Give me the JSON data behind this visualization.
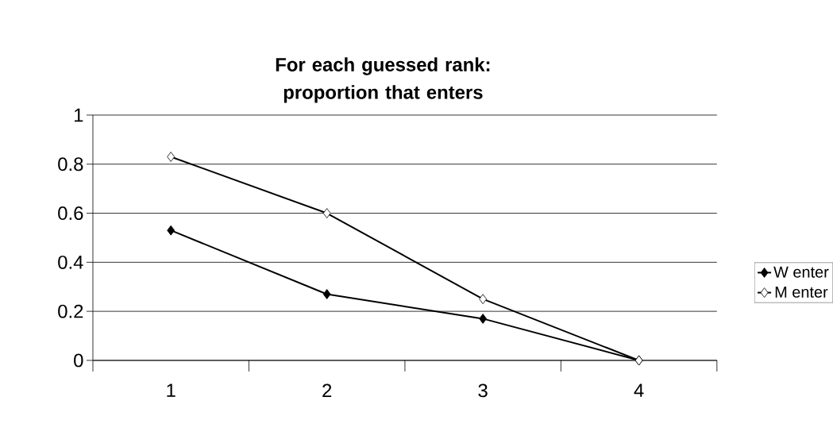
{
  "chart_data": {
    "type": "line",
    "title": "For each guessed rank: proportion that enters",
    "categories": [
      "1",
      "2",
      "3",
      "4"
    ],
    "series": [
      {
        "name": "W enter",
        "color": "#000000",
        "values": [
          0.53,
          0.27,
          0.17,
          0
        ]
      },
      {
        "name": "M enter",
        "color": "#ffffff",
        "values": [
          0.83,
          0.6,
          0.25,
          0
        ]
      }
    ],
    "ylim": [
      0,
      1
    ],
    "yticks": [
      0,
      0.2,
      0.4,
      0.6,
      0.8,
      1
    ],
    "grid": "y",
    "legend": "right",
    "marker": "diamond",
    "line_style": "solid"
  }
}
